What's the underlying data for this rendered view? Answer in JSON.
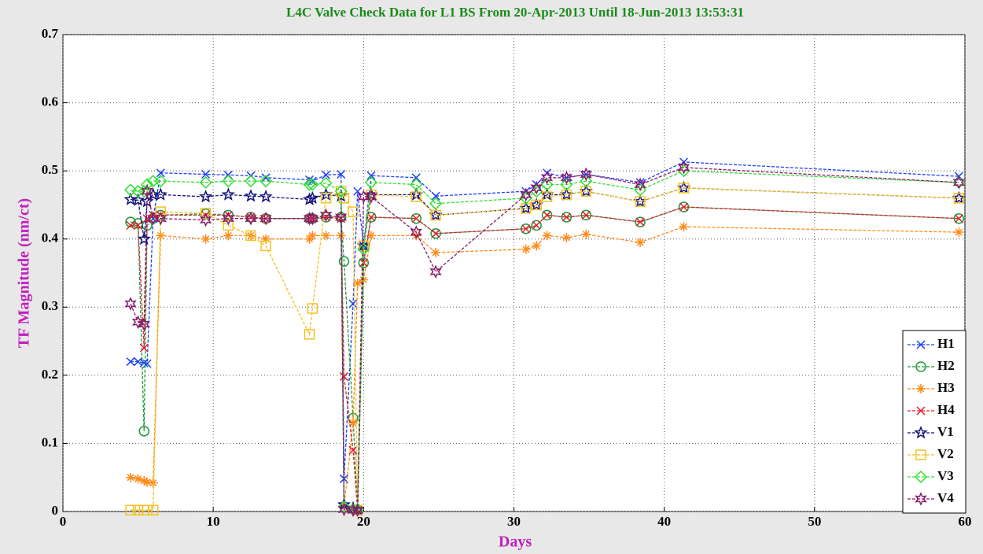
{
  "chart_data": {
    "type": "line",
    "title": "L4C Valve Check Data for L1 BS From 20-Apr-2013 Until 18-Jun-2013 13:53:31",
    "x_label": "Days",
    "y_label": "TF Magnitude (nm/ct)",
    "xlim": [
      0,
      60
    ],
    "xticks": [
      0,
      10,
      20,
      30,
      40,
      50,
      60
    ],
    "ylim": [
      0,
      0.7
    ],
    "yticks": [
      0,
      0.1,
      0.2,
      0.3,
      0.4,
      0.5,
      0.6,
      0.7
    ],
    "grid": true,
    "legend": "lower right",
    "x": [
      4.5,
      5.0,
      5.4,
      5.6,
      6.0,
      6.5,
      9.5,
      11.0,
      12.5,
      13.5,
      16.4,
      16.6,
      17.5,
      18.5,
      18.7,
      19.3,
      19.6,
      20.0,
      20.5,
      23.5,
      24.8,
      30.8,
      31.5,
      32.2,
      33.5,
      34.8,
      38.4,
      41.3,
      59.6
    ],
    "series": [
      {
        "name": "H1",
        "color": "#1f3fff",
        "marker": "x",
        "values": [
          0.22,
          0.22,
          0.218,
          0.217,
          0.43,
          0.497,
          0.495,
          0.494,
          0.493,
          0.49,
          0.487,
          0.485,
          0.494,
          0.495,
          0.048,
          0.305,
          0.47,
          0.39,
          0.493,
          0.49,
          0.463,
          0.47,
          0.48,
          0.497,
          0.49,
          0.495,
          0.483,
          0.513,
          0.492
        ]
      },
      {
        "name": "H2",
        "color": "#1a9a3a",
        "marker": "o",
        "values": [
          0.425,
          0.423,
          0.118,
          0.42,
          0.43,
          0.435,
          0.437,
          0.435,
          0.432,
          0.43,
          0.43,
          0.43,
          0.432,
          0.432,
          0.367,
          0.137,
          0.003,
          0.365,
          0.432,
          0.43,
          0.408,
          0.415,
          0.42,
          0.435,
          0.432,
          0.435,
          0.425,
          0.447,
          0.43
        ]
      },
      {
        "name": "H3",
        "color": "#ff8a1a",
        "marker": "*",
        "values": [
          0.05,
          0.048,
          0.045,
          0.043,
          0.042,
          0.405,
          0.4,
          0.405,
          0.405,
          0.4,
          0.4,
          0.405,
          0.405,
          0.405,
          0.008,
          0.13,
          0.335,
          0.34,
          0.405,
          0.405,
          0.38,
          0.385,
          0.39,
          0.405,
          0.402,
          0.407,
          0.395,
          0.418,
          0.41
        ]
      },
      {
        "name": "H4",
        "color": "#e0202a",
        "marker": "x",
        "values": [
          0.42,
          0.42,
          0.24,
          0.43,
          0.435,
          0.435,
          0.435,
          0.435,
          0.432,
          0.43,
          0.43,
          0.43,
          0.432,
          0.43,
          0.198,
          0.09,
          0.002,
          0.365,
          0.432,
          0.43,
          0.408,
          0.415,
          0.42,
          0.435,
          0.432,
          0.435,
          0.425,
          0.447,
          0.43
        ]
      },
      {
        "name": "V1",
        "color": "#10107a",
        "marker": "pentagram",
        "values": [
          0.458,
          0.457,
          0.4,
          0.455,
          0.465,
          0.465,
          0.462,
          0.465,
          0.463,
          0.462,
          0.458,
          0.46,
          0.465,
          0.463,
          0.01,
          0.005,
          0.002,
          0.39,
          0.465,
          0.465,
          0.435,
          0.445,
          0.45,
          0.465,
          0.465,
          0.47,
          0.455,
          0.475,
          0.46
        ]
      },
      {
        "name": "V2",
        "color": "#f5c020",
        "marker": "s",
        "values": [
          0.002,
          0.002,
          0.002,
          0.002,
          0.002,
          0.44,
          0.438,
          0.42,
          0.405,
          0.39,
          0.26,
          0.298,
          0.46,
          0.47,
          0.46,
          0.44,
          0.002,
          0.39,
          0.465,
          0.462,
          0.435,
          0.445,
          0.45,
          0.462,
          0.465,
          0.47,
          0.455,
          0.475,
          0.46
        ]
      },
      {
        "name": "V3",
        "color": "#30e030",
        "marker": "d",
        "values": [
          0.472,
          0.47,
          0.47,
          0.48,
          0.485,
          0.485,
          0.483,
          0.485,
          0.485,
          0.485,
          0.48,
          0.48,
          0.482,
          0.47,
          0.007,
          0.003,
          0.003,
          0.385,
          0.483,
          0.48,
          0.452,
          0.46,
          0.47,
          0.48,
          0.48,
          0.485,
          0.472,
          0.5,
          0.483
        ]
      },
      {
        "name": "V4",
        "color": "#8a1a6a",
        "marker": "hexagram",
        "values": [
          0.305,
          0.278,
          0.275,
          0.47,
          0.43,
          0.43,
          0.428,
          0.43,
          0.43,
          0.43,
          0.43,
          0.43,
          0.435,
          0.432,
          0.003,
          0.002,
          0.002,
          0.462,
          0.462,
          0.41,
          0.352,
          0.465,
          0.475,
          0.49,
          0.49,
          0.495,
          0.48,
          0.505,
          0.483
        ]
      }
    ]
  }
}
